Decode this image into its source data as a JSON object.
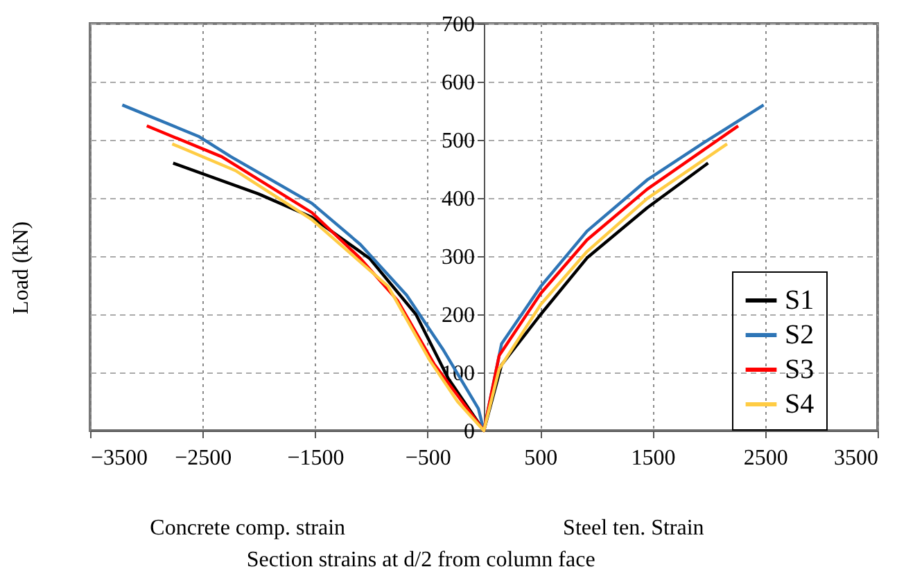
{
  "chart_data": {
    "type": "line",
    "xlabel": "Section strains at d/2 from column face",
    "ylabel": "Load (kN)",
    "annotations": [
      "Concrete comp. strain",
      "Steel ten. Strain"
    ],
    "xlim": [
      -3500,
      3500
    ],
    "xticks": [
      -3500,
      -2500,
      -1500,
      -500,
      500,
      1500,
      2500,
      3500
    ],
    "ylim": [
      0,
      700
    ],
    "yticks": [
      0,
      100,
      200,
      300,
      400,
      500,
      600,
      700
    ],
    "grid": true,
    "legend": "bottom right",
    "marker": "none",
    "line_style": "solid",
    "series": [
      {
        "name": "S1",
        "color": "#000000",
        "x": [
          -2762,
          -2002,
          -1529,
          -1015,
          -604,
          -317,
          0,
          157,
          506,
          917,
          1451,
          1993
        ],
        "values": [
          460,
          407,
          367,
          296,
          200,
          90,
          0,
          113,
          200,
          297,
          383,
          460
        ]
      },
      {
        "name": "S2",
        "color": "#2e75b6",
        "x": [
          -3214,
          -2536,
          -2248,
          -1529,
          -1097,
          -687,
          -358,
          -49,
          0,
          157,
          506,
          917,
          1451,
          1945,
          2487
        ],
        "values": [
          560,
          506,
          471,
          391,
          320,
          233,
          138,
          38,
          0,
          149,
          248,
          343,
          431,
          494,
          560
        ]
      },
      {
        "name": "S3",
        "color": "#ff0000",
        "x": [
          -2996,
          -2330,
          -1529,
          -1097,
          -768,
          -440,
          0,
          136,
          506,
          917,
          1451,
          2261
        ],
        "values": [
          524,
          471,
          375,
          296,
          224,
          114,
          0,
          129,
          236,
          328,
          415,
          524
        ]
      },
      {
        "name": "S4",
        "color": "#ffcc44",
        "x": [
          -2770,
          -2207,
          -1529,
          -851,
          -481,
          -234,
          0,
          136,
          506,
          917,
          1451,
          2162
        ],
        "values": [
          493,
          447,
          363,
          248,
          121,
          50,
          0,
          106,
          217,
          308,
          399,
          493
        ]
      }
    ]
  }
}
